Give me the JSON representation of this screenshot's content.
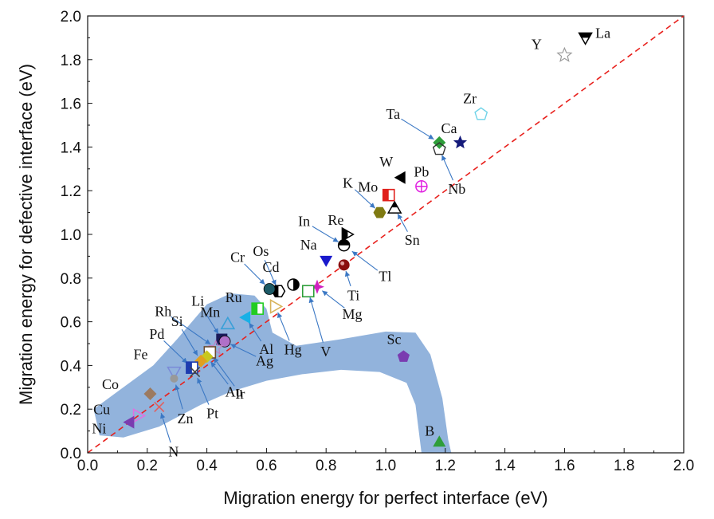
{
  "chart_data": {
    "type": "scatter",
    "xlabel": "Migration energy for perfect interface (eV)",
    "ylabel": "Migration energy for defective interface (eV)",
    "xlim": [
      0.0,
      2.0
    ],
    "ylim": [
      0.0,
      2.0
    ],
    "xticks": [
      "0.0",
      "0.2",
      "0.4",
      "0.6",
      "0.8",
      "1.0",
      "1.2",
      "1.4",
      "1.6",
      "1.8",
      "2.0"
    ],
    "yticks": [
      "0.0",
      "0.2",
      "0.4",
      "0.6",
      "0.8",
      "1.0",
      "1.2",
      "1.4",
      "1.6",
      "1.8",
      "2.0"
    ],
    "grid": false,
    "reference_line": {
      "x": [
        0,
        2
      ],
      "y": [
        0,
        2
      ],
      "style": "dashed",
      "color": "#e8201c"
    },
    "highlight_region_color": "#7fa6d6",
    "points": [
      {
        "label": "Y",
        "x": 1.6,
        "y": 1.82,
        "marker": "star-open",
        "color": "#9a9a9a"
      },
      {
        "label": "La",
        "x": 1.67,
        "y": 1.9,
        "marker": "tri-down-half",
        "color": "#000000"
      },
      {
        "label": "Zr",
        "x": 1.32,
        "y": 1.55,
        "marker": "pentagon-open",
        "color": "#6fd3e8"
      },
      {
        "label": "Ta",
        "x": 1.18,
        "y": 1.42,
        "marker": "diamond",
        "color": "#2e9e3a"
      },
      {
        "label": "Ca",
        "x": 1.25,
        "y": 1.42,
        "marker": "star",
        "color": "#141a7a"
      },
      {
        "label": "Nb",
        "x": 1.18,
        "y": 1.39,
        "marker": "pentagon-open",
        "color": "#333333"
      },
      {
        "label": "W",
        "x": 1.05,
        "y": 1.26,
        "marker": "tri-left",
        "color": "#000000"
      },
      {
        "label": "Pb",
        "x": 1.12,
        "y": 1.22,
        "marker": "circle-plus",
        "color": "#e020e0"
      },
      {
        "label": "Mo",
        "x": 1.01,
        "y": 1.18,
        "marker": "square-half",
        "color": "#e0201c"
      },
      {
        "label": "Sn",
        "x": 1.03,
        "y": 1.12,
        "marker": "tri-up-half",
        "color": "#000000"
      },
      {
        "label": "K",
        "x": 0.98,
        "y": 1.1,
        "marker": "hexagon",
        "color": "#7f7a12"
      },
      {
        "label": "Re",
        "x": 0.87,
        "y": 1.0,
        "marker": "tri-right-half",
        "color": "#000000"
      },
      {
        "label": "In",
        "x": 0.86,
        "y": 0.95,
        "marker": "circle-half",
        "color": "#000000"
      },
      {
        "label": "Na",
        "x": 0.8,
        "y": 0.88,
        "marker": "tri-down",
        "color": "#1a1acc"
      },
      {
        "label": "Ti",
        "x": 0.86,
        "y": 0.86,
        "marker": "sphere",
        "color": "#8a0e0e"
      },
      {
        "label": "Tl",
        "x": 0.87,
        "y": 0.94,
        "marker": "none",
        "color": "#000000"
      },
      {
        "label": "Cd",
        "x": 0.69,
        "y": 0.77,
        "marker": "circle-half-v",
        "color": "#000000"
      },
      {
        "label": "Mg",
        "x": 0.77,
        "y": 0.76,
        "marker": "star4",
        "color": "#d020c0"
      },
      {
        "label": "V",
        "x": 0.74,
        "y": 0.74,
        "marker": "square-open",
        "color": "#2e9e3a"
      },
      {
        "label": "Os",
        "x": 0.64,
        "y": 0.74,
        "marker": "hexagon-half",
        "color": "#000000"
      },
      {
        "label": "Cr",
        "x": 0.61,
        "y": 0.75,
        "marker": "circle",
        "color": "#1c5a66"
      },
      {
        "label": "Ru",
        "x": 0.57,
        "y": 0.66,
        "marker": "square-half",
        "color": "#22cc22"
      },
      {
        "label": "Hg",
        "x": 0.63,
        "y": 0.67,
        "marker": "tri-right-open",
        "color": "#d8b35a"
      },
      {
        "label": "Al",
        "x": 0.53,
        "y": 0.62,
        "marker": "tri-left",
        "color": "#19b0e6"
      },
      {
        "label": "Mn",
        "x": 0.47,
        "y": 0.59,
        "marker": "tri-up-open",
        "color": "#3aa0d8"
      },
      {
        "label": "Li",
        "x": 0.45,
        "y": 0.52,
        "marker": "square",
        "color": "#1a1a5a"
      },
      {
        "label": "Ag",
        "x": 0.46,
        "y": 0.51,
        "marker": "circle",
        "color": "#b070c8"
      },
      {
        "label": "Rh",
        "x": 0.43,
        "y": 0.48,
        "marker": "star-open",
        "color": "#c080c0"
      },
      {
        "label": "Ir",
        "x": 0.41,
        "y": 0.46,
        "marker": "square-open",
        "color": "#6e4c2e"
      },
      {
        "label": "Au",
        "x": 0.4,
        "y": 0.44,
        "marker": "diamond",
        "color": "#c8c81e"
      },
      {
        "label": "Si",
        "x": 0.38,
        "y": 0.42,
        "marker": "diamond",
        "color": "#e0a020"
      },
      {
        "label": "Pd",
        "x": 0.35,
        "y": 0.39,
        "marker": "square-half",
        "color": "#1c3cb0"
      },
      {
        "label": "Pt",
        "x": 0.36,
        "y": 0.37,
        "marker": "x-cross",
        "color": "#444444"
      },
      {
        "label": "Fe",
        "x": 0.29,
        "y": 0.37,
        "marker": "tri-down-open",
        "color": "#7a8ad8"
      },
      {
        "label": "Zn",
        "x": 0.29,
        "y": 0.34,
        "marker": "circle-small",
        "color": "#999999"
      },
      {
        "label": "Co",
        "x": 0.21,
        "y": 0.27,
        "marker": "diamond",
        "color": "#9c7a60"
      },
      {
        "label": "N",
        "x": 0.24,
        "y": 0.21,
        "marker": "x-cross",
        "color": "#e06060"
      },
      {
        "label": "Cu",
        "x": 0.17,
        "y": 0.17,
        "marker": "tri-right-open",
        "color": "#e070e0"
      },
      {
        "label": "Ni",
        "x": 0.14,
        "y": 0.14,
        "marker": "tri-left",
        "color": "#7a3cb0"
      },
      {
        "label": "Sc",
        "x": 1.06,
        "y": 0.44,
        "marker": "pentagon",
        "color": "#7a3cb0"
      },
      {
        "label": "B",
        "x": 1.18,
        "y": 0.05,
        "marker": "tri-up",
        "color": "#2e9e3a"
      }
    ]
  }
}
